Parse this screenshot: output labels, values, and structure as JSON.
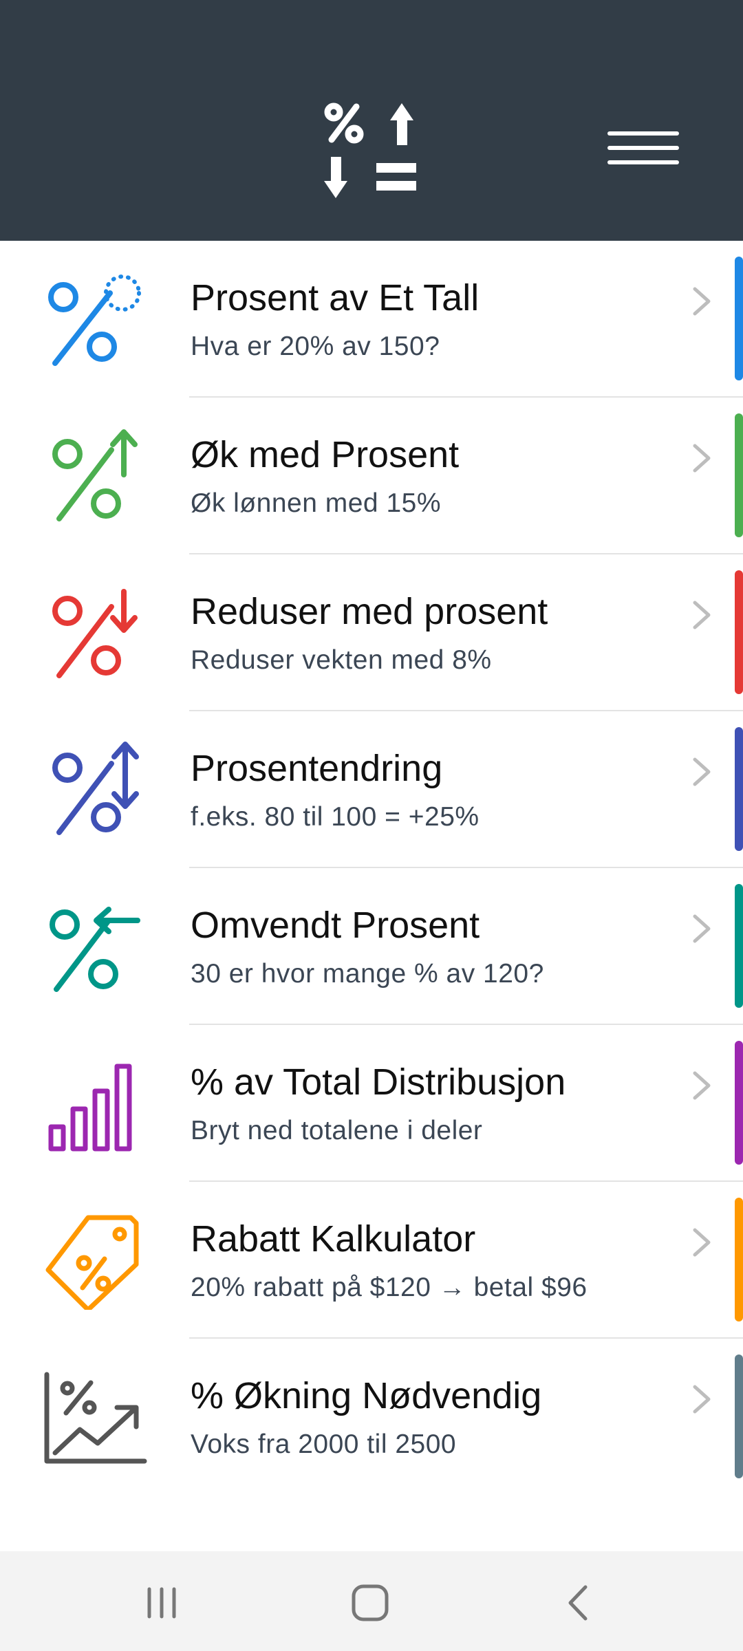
{
  "header": {
    "logo_icon": "percent-arrows-logo-icon",
    "menu_icon": "hamburger-menu-icon",
    "background": "#323d47"
  },
  "items": [
    {
      "title": "Prosent av Et Tall",
      "subtitle": "Hva er 20% av 150?",
      "color": "#1e88e5",
      "icon": "percent-of-number-icon"
    },
    {
      "title": "Øk med Prosent",
      "subtitle": "Øk lønnen med 15%",
      "color": "#4caf50",
      "icon": "percent-increase-icon"
    },
    {
      "title": "Reduser med prosent",
      "subtitle": "Reduser vekten med 8%",
      "color": "#e53935",
      "icon": "percent-decrease-icon"
    },
    {
      "title": "Prosentendring",
      "subtitle": "f.eks. 80 til 100 = +25%",
      "color": "#3f51b5",
      "icon": "percent-change-icon"
    },
    {
      "title": "Omvendt Prosent",
      "subtitle": "30 er hvor mange % av 120?",
      "color": "#009688",
      "icon": "reverse-percent-icon"
    },
    {
      "title": "% av Total Distribusjon",
      "subtitle": "Bryt ned totalene i deler",
      "color": "#9c27b0",
      "icon": "bar-chart-icon"
    },
    {
      "title": "Rabatt Kalkulator",
      "subtitle": "20% rabatt på $120 → betal $96",
      "color": "#ff9800",
      "icon": "discount-tag-icon"
    },
    {
      "title": "% Økning Nødvendig",
      "subtitle": "Voks fra 2000 til 2500",
      "color": "#607d8b",
      "icon": "growth-chart-icon"
    }
  ],
  "navbar": {
    "recent_icon": "recent-apps-icon",
    "home_icon": "home-icon",
    "back_icon": "back-icon"
  }
}
